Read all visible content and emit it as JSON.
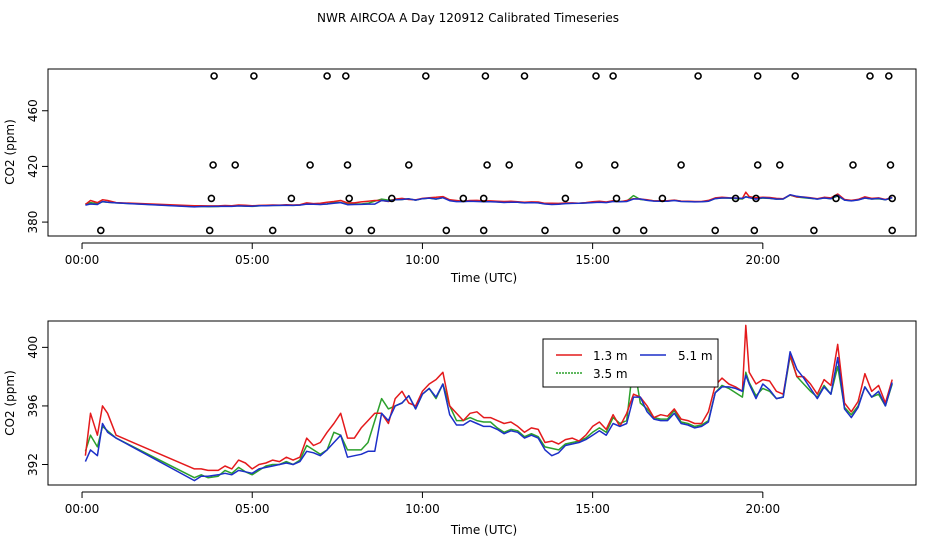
{
  "title": "NWR AIRCOA A  Day 120912  Calibrated Timeseries",
  "chart_data": [
    {
      "type": "scatter+line",
      "ylabel": "CO2 (ppm)",
      "xlabel": "Time (UTC)",
      "xlim": [
        -1.0,
        24.5
      ],
      "ylim": [
        370,
        490
      ],
      "xticks": [
        {
          "v": 0,
          "label": "00:00"
        },
        {
          "v": 5,
          "label": "05:00"
        },
        {
          "v": 10,
          "label": "10:00"
        },
        {
          "v": 15,
          "label": "15:00"
        },
        {
          "v": 20,
          "label": "20:00"
        }
      ],
      "yticks": [
        380,
        420,
        460
      ],
      "calibration_points": {
        "marker": "open-circle",
        "x": [
          3.88,
          5.05,
          7.2,
          7.75,
          10.1,
          11.85,
          13.0,
          15.1,
          15.6,
          18.1,
          19.85,
          20.95,
          23.15,
          23.7,
          3.85,
          4.5,
          6.7,
          7.8,
          9.6,
          11.9,
          12.55,
          14.6,
          15.65,
          17.6,
          19.85,
          20.5,
          22.65,
          23.75,
          3.8,
          6.15,
          7.85,
          9.1,
          11.2,
          11.8,
          14.2,
          15.7,
          17.05,
          19.2,
          19.8,
          22.15,
          23.8,
          0.55,
          3.75,
          5.6,
          7.85,
          8.5,
          10.7,
          11.8,
          13.6,
          15.7,
          16.5,
          18.6,
          19.75,
          21.5,
          23.8
        ],
        "y": [
          485,
          485,
          485,
          485,
          485,
          485,
          485,
          485,
          485,
          485,
          485,
          485,
          485,
          485,
          421,
          421,
          421,
          421,
          421,
          421,
          421,
          421,
          421,
          421,
          421,
          421,
          421,
          421,
          397,
          397,
          397,
          397,
          397,
          397,
          397,
          397,
          397,
          397,
          397,
          397,
          397,
          374,
          374,
          374,
          374,
          374,
          374,
          374,
          374,
          374,
          374,
          374,
          374,
          374,
          374
        ]
      },
      "series_ref": "panel-2"
    },
    {
      "type": "line",
      "ylabel": "CO2 (ppm)",
      "xlabel": "Time (UTC)",
      "xlim": [
        -1.0,
        24.5
      ],
      "ylim": [
        390.6,
        401.8
      ],
      "xticks": [
        {
          "v": 0,
          "label": "00:00"
        },
        {
          "v": 5,
          "label": "05:00"
        },
        {
          "v": 10,
          "label": "10:00"
        },
        {
          "v": 15,
          "label": "15:00"
        },
        {
          "v": 20,
          "label": "20:00"
        }
      ],
      "yticks": [
        392,
        396,
        400
      ],
      "legend": {
        "placement": "top-right",
        "entries": [
          "1.3 m",
          "3.5 m",
          "5.1 m"
        ]
      },
      "x": [
        0.1,
        0.25,
        0.45,
        0.6,
        0.75,
        1.0,
        3.3,
        3.5,
        3.7,
        4.0,
        4.2,
        4.4,
        4.6,
        4.8,
        5.0,
        5.2,
        5.4,
        5.6,
        5.8,
        6.0,
        6.2,
        6.4,
        6.6,
        6.8,
        7.0,
        7.2,
        7.4,
        7.6,
        7.8,
        8.0,
        8.2,
        8.4,
        8.6,
        8.8,
        9.0,
        9.2,
        9.4,
        9.6,
        9.8,
        10.0,
        10.2,
        10.4,
        10.6,
        10.8,
        11.0,
        11.2,
        11.4,
        11.6,
        11.8,
        12.0,
        12.2,
        12.4,
        12.6,
        12.8,
        13.0,
        13.2,
        13.4,
        13.6,
        13.8,
        14.0,
        14.2,
        14.4,
        14.6,
        14.8,
        15.0,
        15.2,
        15.4,
        15.6,
        15.8,
        16.0,
        16.2,
        16.4,
        16.6,
        16.8,
        17.0,
        17.2,
        17.4,
        17.6,
        17.8,
        18.0,
        18.2,
        18.4,
        18.6,
        18.8,
        19.0,
        19.2,
        19.4,
        19.5,
        19.6,
        19.8,
        20.0,
        20.2,
        20.4,
        20.6,
        20.8,
        21.0,
        21.2,
        21.4,
        21.6,
        21.8,
        22.0,
        22.2,
        22.4,
        22.6,
        22.8,
        23.0,
        23.2,
        23.4,
        23.6,
        23.8
      ],
      "series": [
        {
          "name": "1.3 m",
          "color": "#e41a1c",
          "values": [
            392.6,
            395.5,
            394.0,
            396.0,
            395.5,
            394.0,
            391.7,
            391.7,
            391.6,
            391.6,
            391.9,
            391.7,
            392.3,
            392.1,
            391.7,
            392.0,
            392.1,
            392.3,
            392.2,
            392.5,
            392.3,
            392.5,
            393.8,
            393.3,
            393.5,
            394.2,
            394.8,
            395.5,
            393.8,
            393.8,
            394.5,
            395.0,
            395.5,
            395.5,
            394.8,
            396.5,
            397.0,
            396.2,
            396.0,
            397.0,
            397.5,
            397.8,
            398.3,
            396.0,
            395.5,
            395.0,
            395.5,
            395.6,
            395.2,
            395.2,
            395.0,
            394.8,
            394.9,
            394.6,
            394.2,
            394.5,
            394.4,
            393.5,
            393.6,
            393.4,
            393.7,
            393.8,
            393.6,
            394.0,
            394.6,
            394.9,
            394.4,
            395.4,
            394.6,
            395.5,
            396.8,
            396.6,
            396.0,
            395.2,
            395.4,
            395.3,
            395.8,
            395.1,
            395.0,
            394.8,
            394.8,
            395.6,
            397.4,
            397.9,
            397.5,
            397.3,
            397.0,
            401.5,
            398.3,
            397.5,
            397.8,
            397.7,
            397.0,
            396.8,
            399.5,
            398.0,
            398.0,
            397.5,
            396.8,
            397.8,
            397.4,
            400.2,
            396.2,
            395.6,
            396.3,
            398.2,
            397.0,
            397.4,
            396.2,
            397.8
          ]
        },
        {
          "name": "3.5 m",
          "color": "#2ca02c",
          "values": [
            392.9,
            394.0,
            393.2,
            394.6,
            394.3,
            393.8,
            391.1,
            391.3,
            391.1,
            391.2,
            391.6,
            391.4,
            391.8,
            391.5,
            391.3,
            391.6,
            391.9,
            392.0,
            392.0,
            392.2,
            392.0,
            392.3,
            393.3,
            393.0,
            392.7,
            393.0,
            394.2,
            394.0,
            393.0,
            393.0,
            393.0,
            393.5,
            395.0,
            396.5,
            395.8,
            396.0,
            396.2,
            396.7,
            395.8,
            396.8,
            397.2,
            396.5,
            397.5,
            396.0,
            395.0,
            395.0,
            395.2,
            395.0,
            394.9,
            394.9,
            394.5,
            394.2,
            394.4,
            394.3,
            393.9,
            394.1,
            393.9,
            393.2,
            393.1,
            393.0,
            393.4,
            393.5,
            393.6,
            393.8,
            394.2,
            394.5,
            394.2,
            395.2,
            394.8,
            395.0,
            399.0,
            396.2,
            395.8,
            395.2,
            395.1,
            395.1,
            395.7,
            394.9,
            394.8,
            394.6,
            394.7,
            395.0,
            396.9,
            397.4,
            397.2,
            396.9,
            396.6,
            398.3,
            397.6,
            396.7,
            397.2,
            397.0,
            396.5,
            396.6,
            399.4,
            398.0,
            397.5,
            397.0,
            396.6,
            397.4,
            396.8,
            398.7,
            395.9,
            395.4,
            396.0,
            397.3,
            396.6,
            396.8,
            396.0,
            397.5
          ]
        },
        {
          "name": "5.1 m",
          "color": "#1c2fc8",
          "values": [
            392.2,
            393.0,
            392.6,
            394.8,
            394.2,
            393.8,
            390.9,
            391.2,
            391.2,
            391.3,
            391.4,
            391.3,
            391.6,
            391.5,
            391.4,
            391.7,
            391.8,
            391.9,
            392.0,
            392.1,
            392.0,
            392.2,
            392.9,
            392.8,
            392.6,
            393.0,
            393.5,
            394.0,
            392.5,
            392.6,
            392.7,
            392.9,
            392.9,
            395.5,
            395.0,
            396.0,
            396.2,
            396.7,
            395.8,
            396.8,
            397.2,
            396.6,
            397.5,
            395.4,
            394.7,
            394.7,
            395.0,
            394.8,
            394.6,
            394.6,
            394.4,
            394.1,
            394.3,
            394.2,
            393.8,
            394.0,
            393.8,
            393.0,
            392.6,
            392.8,
            393.3,
            393.4,
            393.5,
            393.7,
            394.0,
            394.3,
            394.0,
            394.8,
            394.6,
            394.8,
            396.6,
            396.6,
            395.6,
            395.1,
            395.0,
            395.0,
            395.5,
            394.8,
            394.7,
            394.5,
            394.6,
            394.9,
            396.9,
            397.3,
            397.3,
            397.2,
            397.0,
            398.1,
            397.5,
            396.5,
            397.5,
            397.1,
            396.5,
            396.6,
            399.7,
            398.5,
            397.9,
            397.2,
            396.5,
            397.3,
            396.8,
            399.3,
            395.8,
            395.2,
            395.9,
            397.3,
            396.6,
            397.0,
            396.0,
            397.6
          ]
        }
      ]
    }
  ]
}
